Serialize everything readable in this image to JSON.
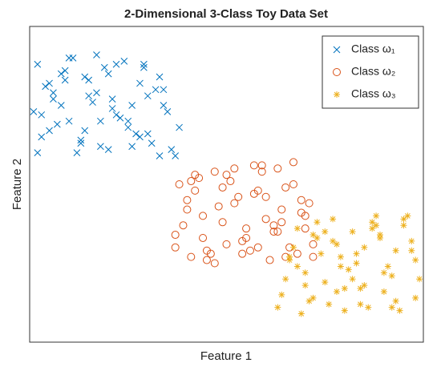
{
  "chart_data": {
    "type": "scatter",
    "title": "2-Dimensional 3-Class Toy Data Set",
    "x_label": "Feature 1",
    "y_label": "Feature 2",
    "xlim": [
      0,
      100
    ],
    "ylim": [
      0,
      100
    ],
    "legend": "upper right",
    "series": [
      {
        "name": "Class ω₁",
        "color": "#0072BD",
        "marker": "x",
        "x": [
          2,
          5,
          8,
          11,
          14,
          17,
          20,
          23,
          26,
          29,
          32,
          35,
          3,
          6,
          9,
          12,
          15,
          18,
          21,
          24,
          27,
          30,
          33,
          36,
          4,
          7,
          10,
          13,
          16,
          19,
          22,
          25,
          28,
          31,
          34,
          37,
          2,
          6,
          10,
          14,
          18,
          22,
          26,
          30,
          34,
          38,
          3,
          8,
          13,
          17,
          21,
          25,
          29,
          33,
          1,
          5,
          9,
          15,
          20,
          28
        ],
        "values": [
          88,
          82,
          75,
          90,
          67,
          79,
          85,
          71,
          62,
          88,
          80,
          73,
          65,
          77,
          86,
          60,
          83,
          70,
          74,
          89,
          66,
          78,
          84,
          61,
          81,
          69,
          90,
          64,
          76,
          87,
          72,
          68,
          82,
          63,
          75,
          59,
          60,
          79,
          70,
          84,
          62,
          88,
          75,
          66,
          80,
          68,
          72,
          85,
          63,
          91,
          77,
          70,
          87,
          59,
          73,
          67,
          83,
          78,
          61,
          65
        ]
      },
      {
        "name": "Class ω₂",
        "color": "#D95319",
        "marker": "o",
        "x": [
          37,
          40,
          43,
          46,
          49,
          52,
          55,
          58,
          61,
          64,
          67,
          70,
          38,
          41,
          44,
          47,
          50,
          53,
          56,
          59,
          62,
          65,
          68,
          71,
          39,
          42,
          45,
          48,
          51,
          54,
          57,
          60,
          63,
          66,
          69,
          72,
          37,
          42,
          47,
          52,
          57,
          62,
          67,
          72,
          40,
          45,
          50,
          55,
          60,
          65,
          70,
          44,
          49,
          54,
          59,
          64,
          69,
          41,
          58,
          63
        ],
        "values": [
          30,
          45,
          52,
          28,
          38,
          55,
          33,
          48,
          26,
          42,
          57,
          36,
          50,
          27,
          40,
          54,
          31,
          46,
          29,
          56,
          35,
          49,
          28,
          44,
          37,
          53,
          26,
          43,
          51,
          32,
          47,
          39,
          55,
          30,
          41,
          27,
          34,
          48,
          25,
          44,
          56,
          37,
          50,
          31,
          42,
          29,
          53,
          36,
          46,
          27,
          40,
          33,
          49,
          28,
          54,
          38,
          45,
          51,
          30,
          35
        ]
      },
      {
        "name": "Class ω₃",
        "color": "#EDB120",
        "marker": "*",
        "x": [
          64,
          67,
          70,
          73,
          76,
          79,
          82,
          85,
          88,
          91,
          94,
          97,
          65,
          68,
          71,
          74,
          77,
          80,
          83,
          86,
          89,
          92,
          95,
          98,
          66,
          69,
          72,
          75,
          78,
          81,
          84,
          87,
          90,
          93,
          96,
          99,
          63,
          68,
          73,
          78,
          83,
          88,
          93,
          98,
          70,
          75,
          80,
          85,
          90,
          95,
          66,
          72,
          77,
          82,
          87,
          92,
          97,
          79,
          84,
          89
        ],
        "values": [
          15,
          30,
          22,
          38,
          12,
          27,
          35,
          18,
          40,
          24,
          10,
          32,
          20,
          36,
          13,
          28,
          39,
          17,
          25,
          11,
          33,
          21,
          37,
          14,
          26,
          9,
          34,
          19,
          31,
          23,
          12,
          38,
          16,
          29,
          40,
          20,
          11,
          24,
          33,
          16,
          28,
          37,
          13,
          26,
          18,
          35,
          10,
          30,
          22,
          39,
          27,
          14,
          32,
          20,
          36,
          11,
          29,
          24,
          17,
          34
        ]
      }
    ]
  }
}
